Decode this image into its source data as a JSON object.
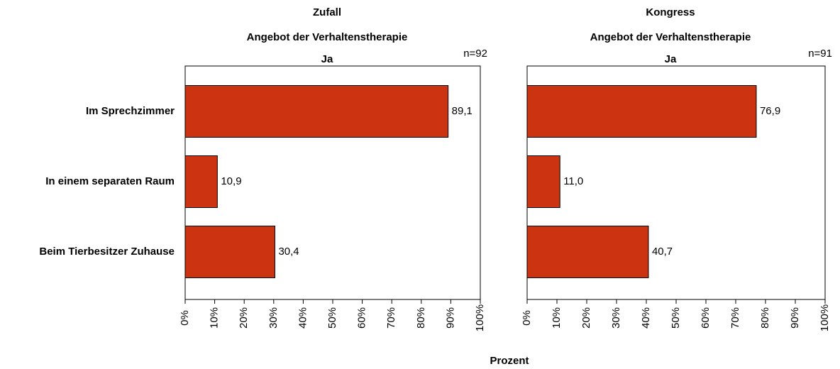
{
  "xlabel": "Prozent",
  "chart_data": [
    {
      "type": "bar",
      "orientation": "horizontal",
      "title": "Zufall",
      "subtitle": "Angebot der Verhaltenstherapie",
      "panel_label": "Ja",
      "annotation": "n=92",
      "categories": [
        "Im Sprechzimmer",
        "In einem separaten Raum",
        "Beim Tierbesitzer Zuhause"
      ],
      "values": [
        89.1,
        10.9,
        30.4
      ],
      "value_labels": [
        "89,1",
        "10,9",
        "30,4"
      ],
      "color": "#cc3311",
      "xlim": [
        0,
        100
      ],
      "xticks": [
        {
          "value": 0,
          "label": "0%"
        },
        {
          "value": 10,
          "label": "10%"
        },
        {
          "value": 20,
          "label": "20%"
        },
        {
          "value": 30,
          "label": "30%"
        },
        {
          "value": 40,
          "label": "40%"
        },
        {
          "value": 50,
          "label": "50%"
        },
        {
          "value": 60,
          "label": "60%"
        },
        {
          "value": 70,
          "label": "70%"
        },
        {
          "value": 80,
          "label": "80%"
        },
        {
          "value": 90,
          "label": "90%"
        },
        {
          "value": 100,
          "label": "100%"
        }
      ]
    },
    {
      "type": "bar",
      "orientation": "horizontal",
      "title": "Kongress",
      "subtitle": "Angebot der Verhaltenstherapie",
      "panel_label": "Ja",
      "annotation": "n=91",
      "values": [
        76.9,
        11.0,
        40.7
      ],
      "value_labels": [
        "76,9",
        "11,0",
        "40,7"
      ],
      "color": "#cc3311",
      "xlim": [
        0,
        100
      ],
      "xticks": [
        {
          "value": 0,
          "label": "0%"
        },
        {
          "value": 10,
          "label": "10%"
        },
        {
          "value": 20,
          "label": "20%"
        },
        {
          "value": 30,
          "label": "30%"
        },
        {
          "value": 40,
          "label": "40%"
        },
        {
          "value": 50,
          "label": "50%"
        },
        {
          "value": 60,
          "label": "60%"
        },
        {
          "value": 70,
          "label": "70%"
        },
        {
          "value": 80,
          "label": "80%"
        },
        {
          "value": 90,
          "label": "90%"
        },
        {
          "value": 100,
          "label": "100%"
        }
      ]
    }
  ]
}
